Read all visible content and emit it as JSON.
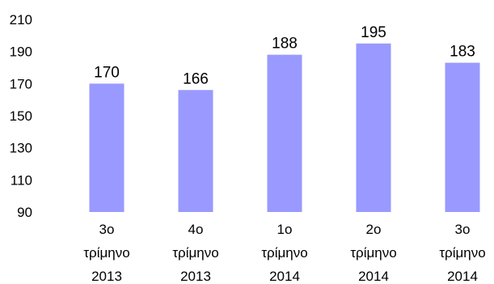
{
  "chart_data": {
    "type": "bar",
    "title": "",
    "xlabel": "",
    "ylabel": "",
    "ylim": [
      90,
      210
    ],
    "yticks": [
      90,
      110,
      130,
      150,
      170,
      190,
      210
    ],
    "grid": false,
    "legend": "none",
    "categories": [
      [
        "3ο",
        "τρίμηνο",
        "2013"
      ],
      [
        "4ο",
        "τρίμηνο",
        "2013"
      ],
      [
        "1ο",
        "τρίμηνο",
        "2014"
      ],
      [
        "2ο",
        "τρίμηνο",
        "2014"
      ],
      [
        "3ο",
        "τρίμηνο",
        "2014"
      ]
    ],
    "values": [
      170,
      166,
      188,
      195,
      183
    ],
    "bar_color": "#9999ff"
  }
}
